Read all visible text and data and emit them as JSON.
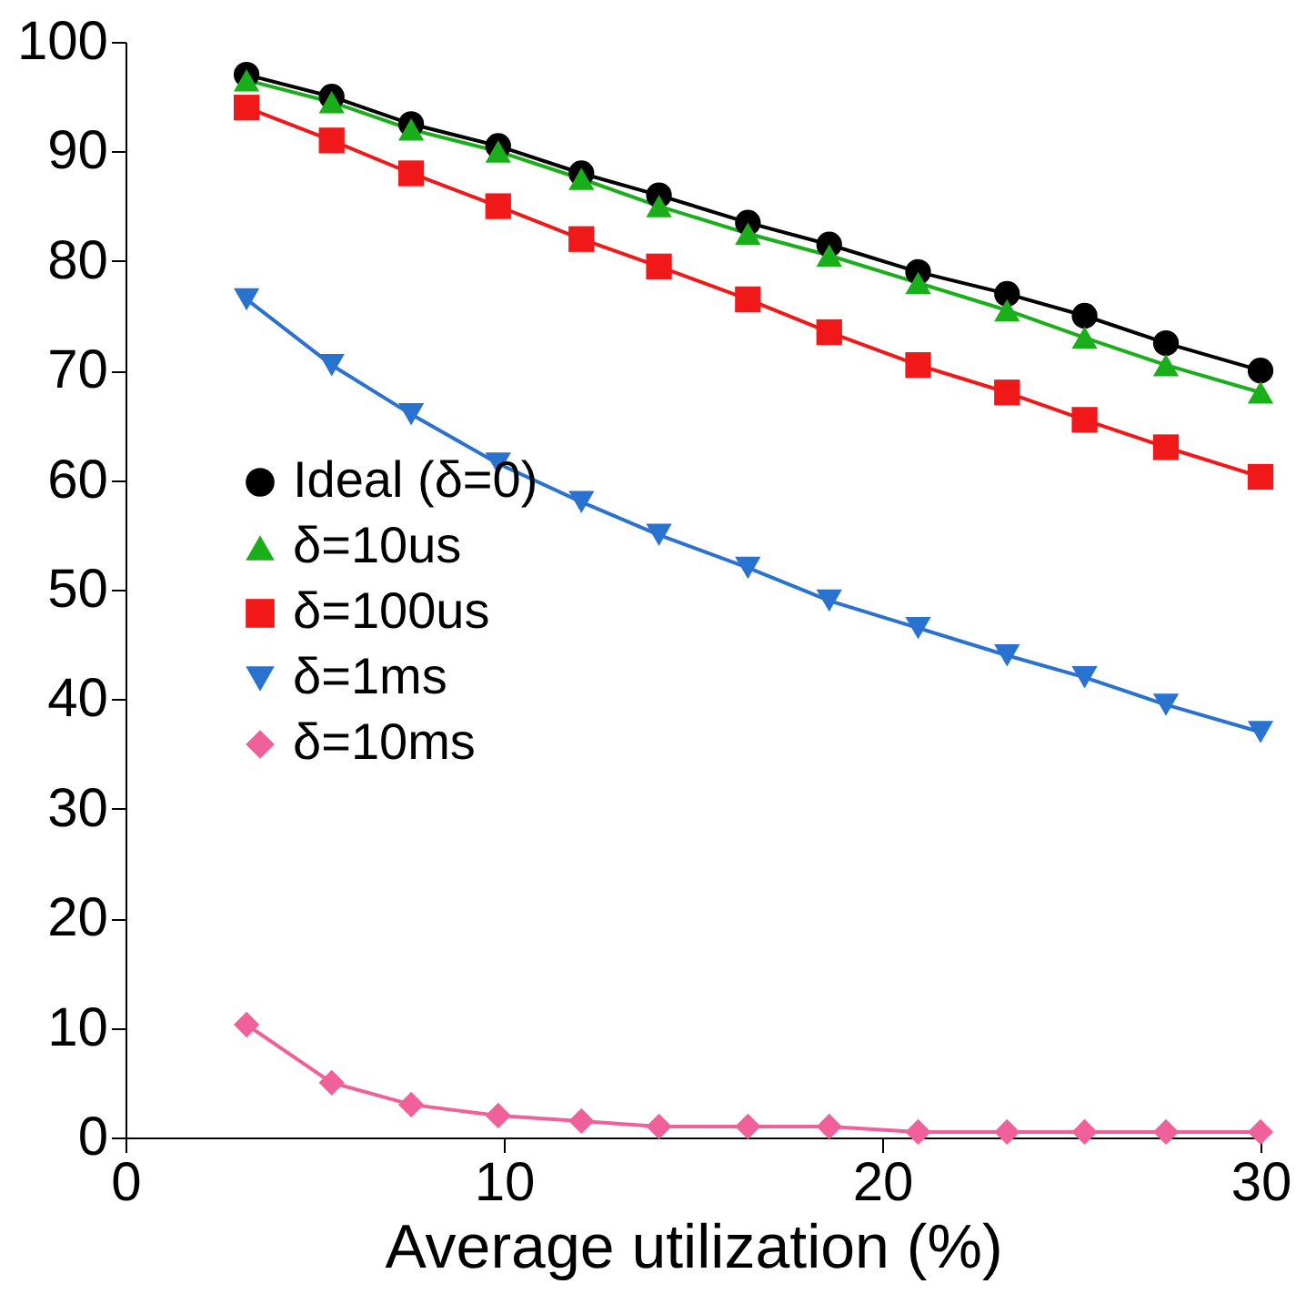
{
  "chart_data": {
    "type": "line",
    "xlabel": "Average utilization (%)",
    "x": [
      3.2,
      5.45,
      7.55,
      9.85,
      12.05,
      14.1,
      16.45,
      18.6,
      20.95,
      23.3,
      25.35,
      27.5,
      30
    ],
    "series": [
      {
        "name": "Ideal (δ=0)",
        "color": "#000000",
        "marker": "circle",
        "values": [
          97,
          95,
          92.5,
          90.5,
          88,
          86,
          83.5,
          81.5,
          79,
          77,
          75,
          72.5,
          70
        ]
      },
      {
        "name": "δ=10us",
        "color": "#1aae1a",
        "marker": "triangle",
        "values": [
          96.5,
          94.5,
          92,
          90,
          87.5,
          85,
          82.5,
          80.5,
          78,
          75.5,
          73,
          70.5,
          68
        ]
      },
      {
        "name": "δ=100us",
        "color": "#f01818",
        "marker": "square",
        "values": [
          94,
          91,
          88,
          85,
          82,
          79.5,
          76.5,
          73.5,
          70.5,
          68,
          65.5,
          63,
          60.3
        ]
      },
      {
        "name": "δ=1ms",
        "color": "#2a72d0",
        "marker": "triangle-down",
        "values": [
          76.5,
          70.5,
          66,
          61.5,
          58,
          55,
          52,
          49,
          46.5,
          44,
          42,
          39.5,
          37
        ]
      },
      {
        "name": "δ=10ms",
        "color": "#f0609a",
        "marker": "diamond",
        "values": [
          10.3,
          5,
          3,
          2,
          1.5,
          1,
          1,
          1,
          0.5,
          0.5,
          0.5,
          0.5,
          0.5
        ]
      }
    ],
    "xlim": [
      0,
      30
    ],
    "xticks": [
      0,
      10,
      20,
      30
    ],
    "ylim": [
      0,
      100
    ],
    "yticks": [
      0,
      10,
      20,
      30,
      40,
      50,
      60,
      70,
      80,
      90,
      100
    ],
    "grid": false,
    "legend": "left",
    "line_style": "solid"
  }
}
